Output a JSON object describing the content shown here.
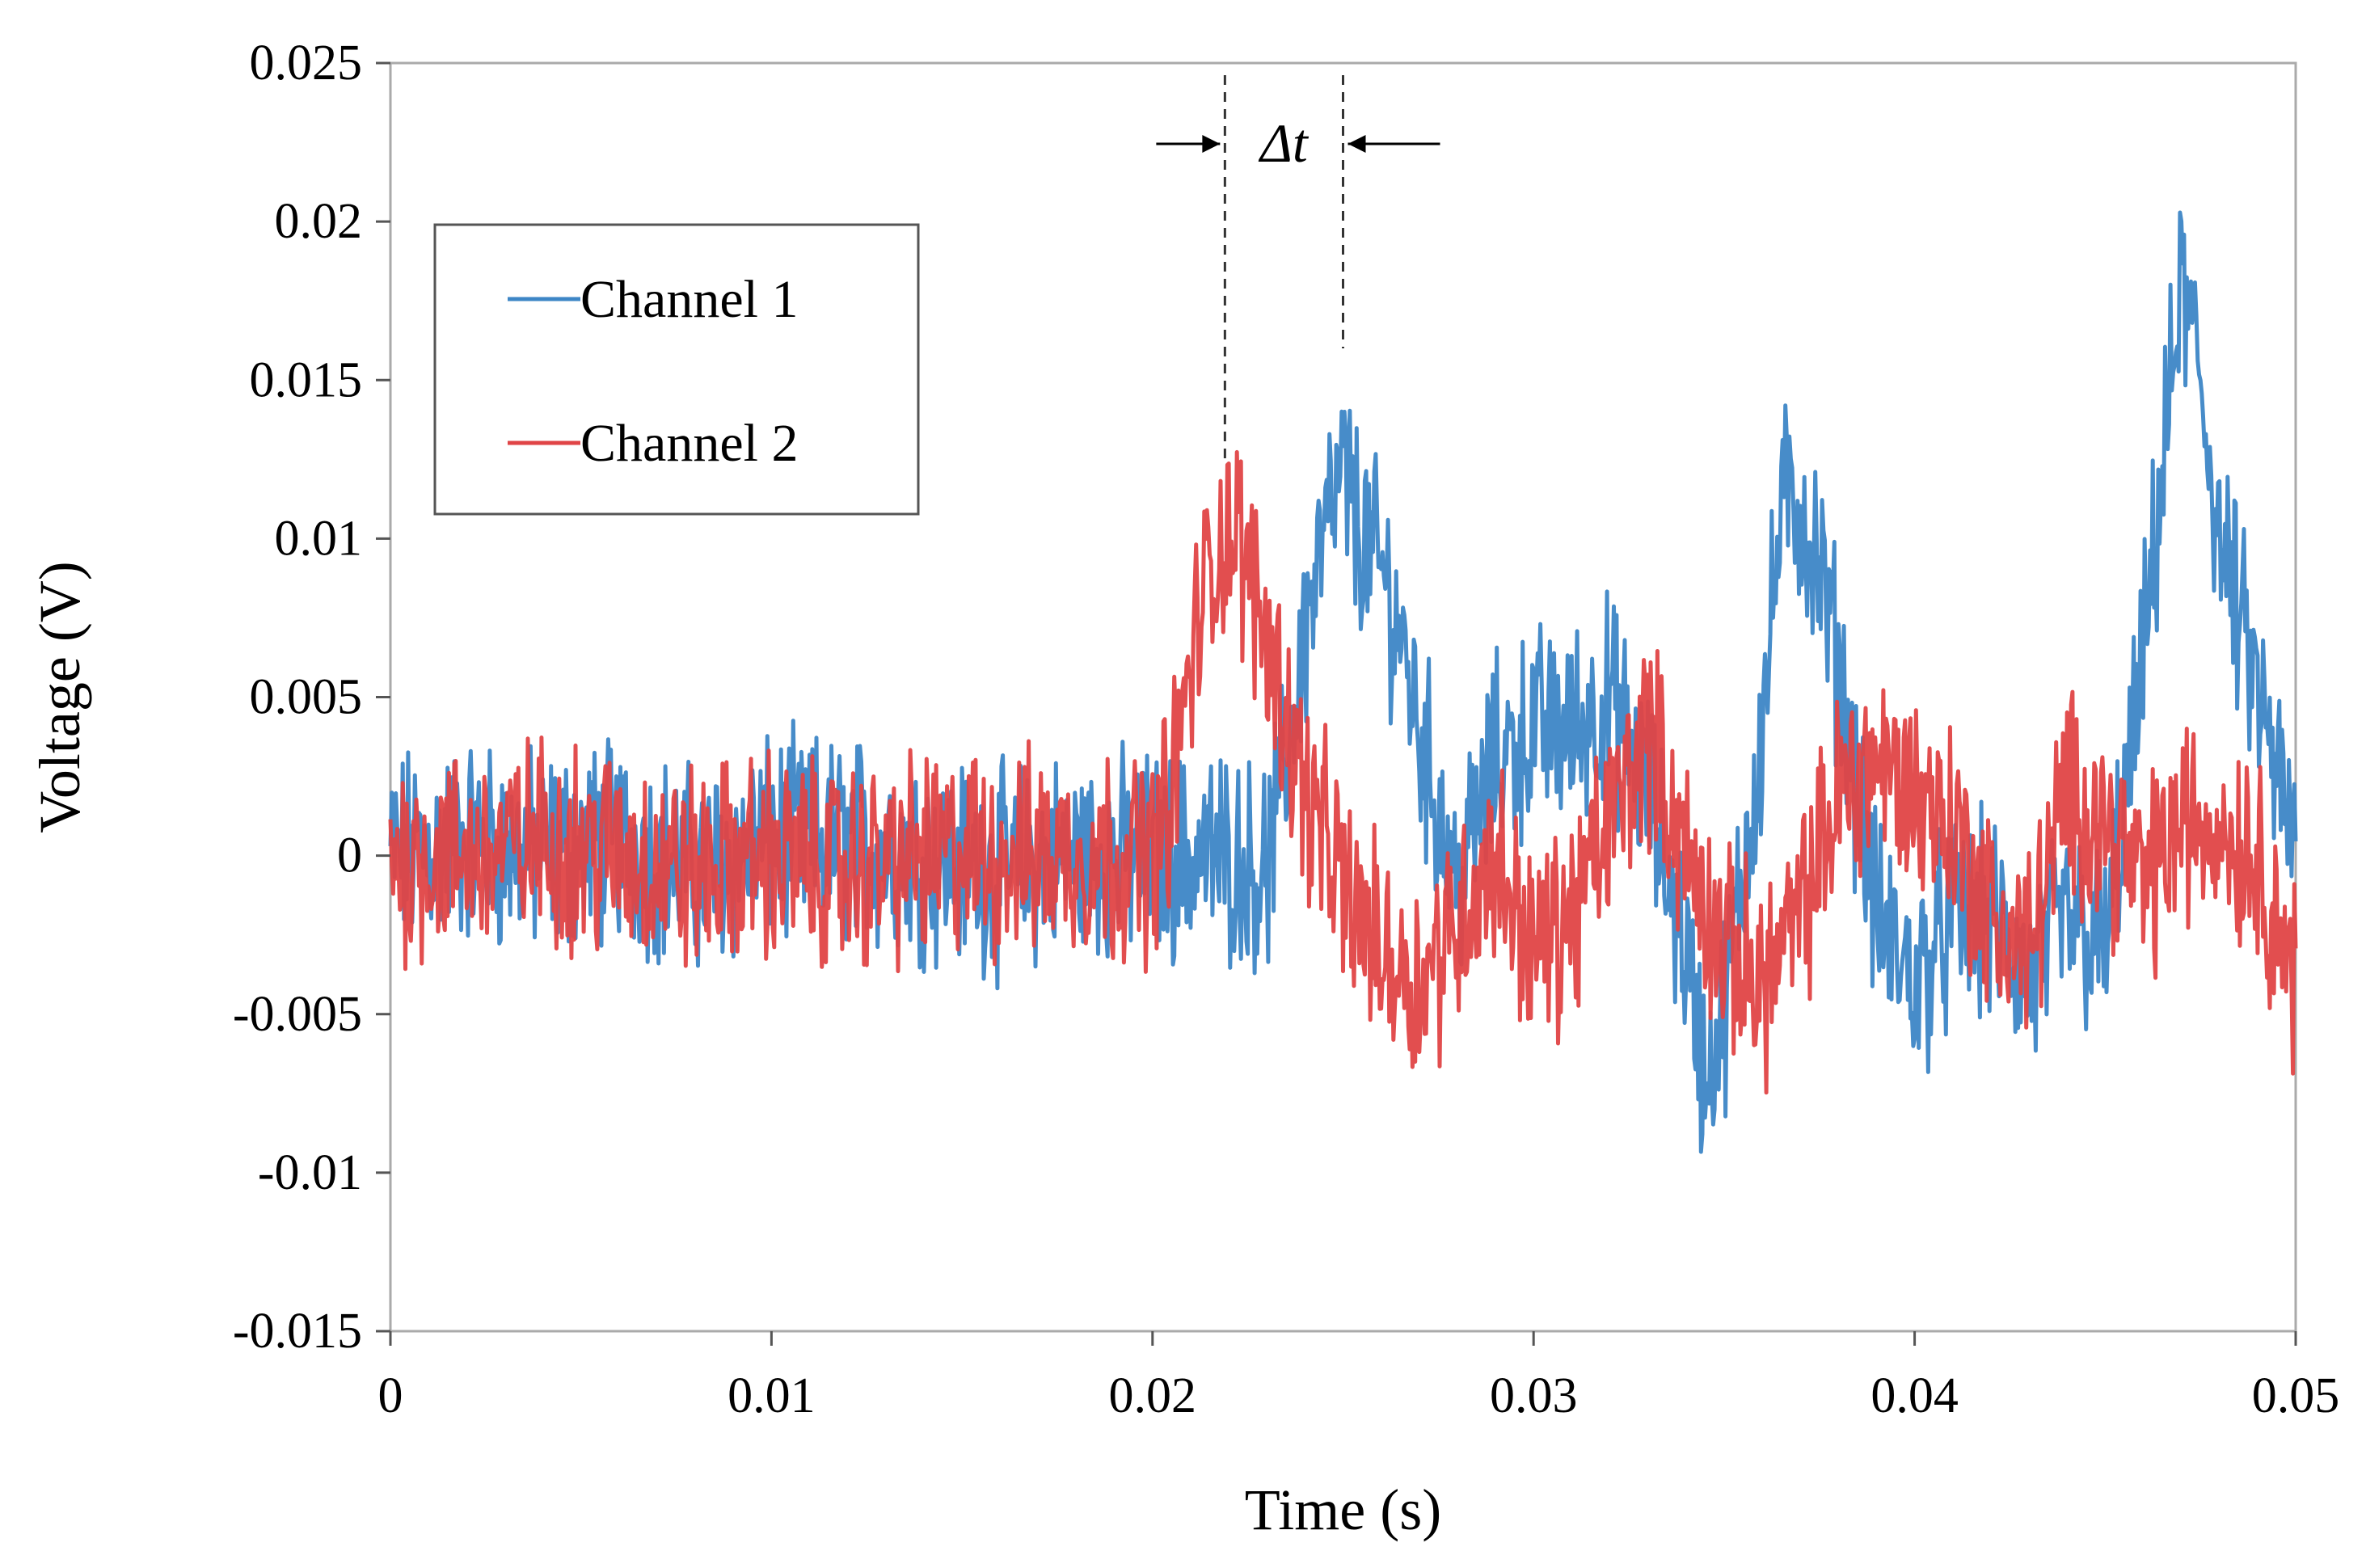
{
  "chart_data": {
    "type": "line",
    "title": "",
    "xlabel": "Time (s)",
    "ylabel": "Voltage (V)",
    "xlim": [
      0,
      0.05
    ],
    "ylim": [
      -0.015,
      0.025
    ],
    "x_ticks": [
      0,
      0.01,
      0.02,
      0.03,
      0.04,
      0.05
    ],
    "x_tick_labels": [
      "0",
      "0.01",
      "0.02",
      "0.03",
      "0.04",
      "0.05"
    ],
    "y_ticks": [
      -0.015,
      -0.01,
      -0.005,
      0,
      0.005,
      0.01,
      0.015,
      0.02,
      0.025
    ],
    "y_tick_labels": [
      "-0.015",
      "-0.01",
      "-0.005",
      "0",
      "0.005",
      "0.01",
      "0.015",
      "0.02",
      "0.025"
    ],
    "grid": false,
    "legend_position": "top-left",
    "series": [
      {
        "name": "Channel 1",
        "color": "#3d86c6",
        "x": [
          0,
          0.002,
          0.004,
          0.006,
          0.008,
          0.01,
          0.012,
          0.014,
          0.016,
          0.018,
          0.02,
          0.021,
          0.022,
          0.023,
          0.0235,
          0.024,
          0.0245,
          0.025,
          0.0255,
          0.026,
          0.0265,
          0.027,
          0.028,
          0.029,
          0.03,
          0.031,
          0.032,
          0.033,
          0.034,
          0.0345,
          0.035,
          0.036,
          0.0365,
          0.037,
          0.0375,
          0.038,
          0.039,
          0.04,
          0.041,
          0.042,
          0.043,
          0.044,
          0.045,
          0.046,
          0.0465,
          0.047,
          0.0475,
          0.048,
          0.049,
          0.05
        ],
        "y": [
          0,
          0.0005,
          0,
          0.0005,
          -0.0005,
          0.0005,
          0.0005,
          0,
          -0.0005,
          0,
          0,
          0,
          0,
          -0.0005,
          0.003,
          0.007,
          0.01,
          0.012,
          0.01,
          0.009,
          0.007,
          0.004,
          -0.001,
          0.003,
          0.004,
          0.004,
          0.005,
          0.002,
          -0.003,
          -0.007,
          -0.005,
          0.004,
          0.011,
          0.011,
          0.009,
          0.006,
          -0.002,
          -0.004,
          -0.002,
          -0.002,
          -0.004,
          -0.002,
          -0.003,
          0.006,
          0.012,
          0.018,
          0.015,
          0.01,
          0.005,
          0
        ]
      },
      {
        "name": "Channel 2",
        "color": "#e04446",
        "x": [
          0,
          0.002,
          0.004,
          0.006,
          0.008,
          0.01,
          0.012,
          0.014,
          0.016,
          0.018,
          0.02,
          0.0205,
          0.021,
          0.0215,
          0.022,
          0.0225,
          0.023,
          0.024,
          0.025,
          0.026,
          0.027,
          0.028,
          0.029,
          0.03,
          0.031,
          0.032,
          0.033,
          0.034,
          0.035,
          0.036,
          0.037,
          0.038,
          0.039,
          0.04,
          0.041,
          0.042,
          0.043,
          0.044,
          0.045,
          0.046,
          0.047,
          0.048,
          0.049,
          0.05
        ],
        "y": [
          0,
          0,
          0.0005,
          0,
          -0.0005,
          0,
          -0.0005,
          0,
          0,
          0,
          0,
          0.002,
          0.006,
          0.009,
          0.0105,
          0.009,
          0.007,
          0.002,
          -0.001,
          -0.003,
          -0.004,
          -0.002,
          0,
          -0.003,
          -0.002,
          0.001,
          0.004,
          0,
          -0.003,
          -0.004,
          -0.002,
          0.002,
          0.003,
          0.002,
          0.001,
          -0.002,
          -0.003,
          0.002,
          0.001,
          -0.001,
          0.001,
          0.001,
          0,
          -0.004
        ]
      }
    ],
    "annotations": [
      {
        "label": "Δt",
        "type": "interval",
        "x_start": 0.0219,
        "x_end": 0.025
      }
    ]
  }
}
